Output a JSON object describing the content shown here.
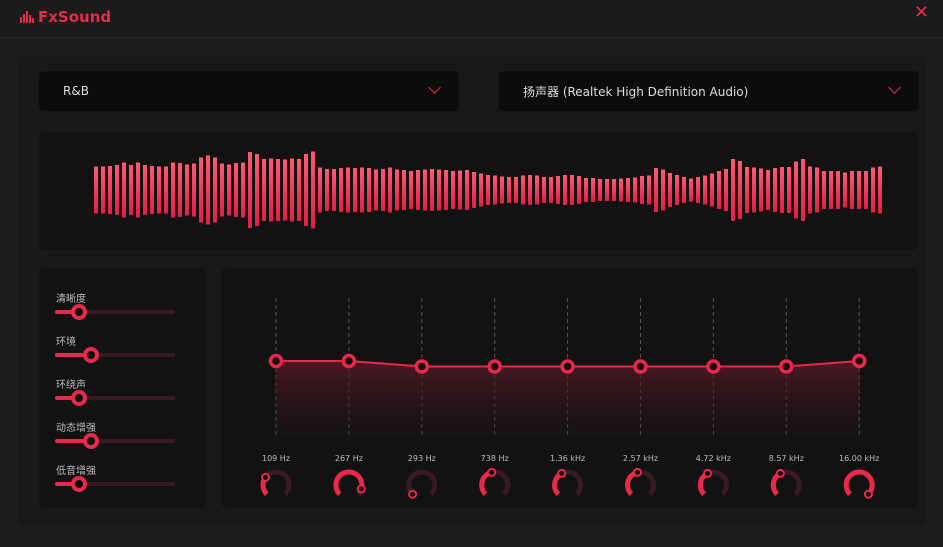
{
  "app": {
    "title": "FxSound",
    "logo_icon": "equalizer-bars-icon",
    "close_icon": "close-icon",
    "accent": "#e8294c"
  },
  "preset": {
    "selected": "R&B"
  },
  "output": {
    "selected": "扬声器 (Realtek High Definition Audio)"
  },
  "visualizer": {
    "levels": [
      47,
      47,
      48,
      50,
      55,
      50,
      55,
      50,
      48,
      47,
      47,
      55,
      54,
      51,
      53,
      65,
      69,
      65,
      53,
      51,
      54,
      55,
      76,
      72,
      62,
      63,
      62,
      61,
      63,
      62,
      72,
      77,
      45,
      42,
      42,
      44,
      45,
      44,
      45,
      44,
      41,
      42,
      45,
      41,
      40,
      38,
      40,
      41,
      42,
      41,
      40,
      38,
      39,
      40,
      36,
      33,
      30,
      29,
      27,
      26,
      26,
      29,
      30,
      29,
      26,
      26,
      28,
      30,
      30,
      28,
      24,
      24,
      22,
      22,
      22,
      23,
      24,
      25,
      28,
      29,
      44,
      41,
      34,
      30,
      26,
      23,
      26,
      29,
      33,
      38,
      42,
      62,
      58,
      46,
      45,
      43,
      40,
      44,
      46,
      46,
      57,
      62,
      47,
      45,
      38,
      38,
      38,
      35,
      38,
      38,
      38,
      45,
      47
    ]
  },
  "effects": [
    {
      "label": "清晰度",
      "value": 0.2
    },
    {
      "label": "环境",
      "value": 0.3
    },
    {
      "label": "环绕声",
      "value": 0.2
    },
    {
      "label": "动态增强",
      "value": 0.3
    },
    {
      "label": "低音增强",
      "value": 0.2
    }
  ],
  "eq": {
    "bands": [
      {
        "freq": "109 Hz",
        "gain": 0.54,
        "knob": 0.3
      },
      {
        "freq": "267 Hz",
        "gain": 0.54,
        "knob": 0.9
      },
      {
        "freq": "293 Hz",
        "gain": 0.5,
        "knob": 0.0
      },
      {
        "freq": "738 Hz",
        "gain": 0.5,
        "knob": 0.45
      },
      {
        "freq": "1.36 kHz",
        "gain": 0.5,
        "knob": 0.4
      },
      {
        "freq": "2.57 kHz",
        "gain": 0.5,
        "knob": 0.45
      },
      {
        "freq": "4.72 kHz",
        "gain": 0.5,
        "knob": 0.4
      },
      {
        "freq": "8.57 kHz",
        "gain": 0.5,
        "knob": 0.4
      },
      {
        "freq": "16.00 kHz",
        "gain": 0.54,
        "knob": 1.0
      }
    ]
  }
}
